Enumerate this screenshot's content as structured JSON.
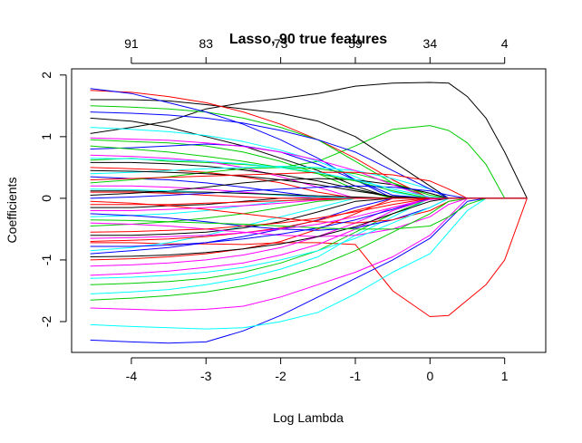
{
  "chart_data": {
    "type": "line",
    "title": "Lasso, 90 true features",
    "xlabel": "Log Lambda",
    "ylabel": "Coefficients",
    "xlim": [
      -4.8,
      1.55
    ],
    "ylim": [
      -2.5,
      2.1
    ],
    "x_ticks": [
      -4,
      -3,
      -2,
      -1,
      0,
      1
    ],
    "x_tick_labels": [
      "-4",
      "-3",
      "-2",
      "-1",
      "0",
      "1"
    ],
    "y_ticks": [
      -2,
      -1,
      0,
      1,
      2
    ],
    "y_tick_labels": [
      "-2",
      "-1",
      "0",
      "1",
      "2"
    ],
    "top_axis": {
      "positions": [
        -4,
        -3,
        -2,
        -1,
        0,
        1
      ],
      "labels": [
        "91",
        "83",
        "73",
        "59",
        "34",
        "4"
      ]
    },
    "x": [
      -4.55,
      -4.0,
      -3.5,
      -3.0,
      -2.5,
      -2.0,
      -1.5,
      -1.0,
      -0.5,
      0.0,
      0.25,
      0.5,
      0.75,
      1.0,
      1.3
    ],
    "palette": [
      "#000000",
      "#ff0000",
      "#00cd00",
      "#0000ff",
      "#00ffff",
      "#ff00ff"
    ],
    "series": [
      {
        "values": [
          1.05,
          1.15,
          1.25,
          1.45,
          1.55,
          1.62,
          1.7,
          1.82,
          1.87,
          1.88,
          1.87,
          1.65,
          1.3,
          0.75,
          0.0
        ]
      },
      {
        "values": [
          -0.72,
          -0.72,
          -0.74,
          -0.74,
          -0.75,
          -0.72,
          -0.72,
          -0.75,
          -1.5,
          -1.92,
          -1.9,
          -1.65,
          -1.4,
          -1.0,
          0.0
        ]
      },
      {
        "values": [
          0.62,
          0.65,
          0.6,
          0.58,
          0.55,
          0.5,
          0.6,
          0.85,
          1.12,
          1.18,
          1.1,
          0.9,
          0.55,
          0.0,
          0.0
        ]
      },
      {
        "values": [
          -2.3,
          -2.33,
          -2.35,
          -2.33,
          -2.15,
          -1.9,
          -1.6,
          -1.3,
          -1.0,
          -0.65,
          -0.35,
          -0.05,
          0.0,
          0.0,
          0.0
        ]
      },
      {
        "values": [
          -2.05,
          -2.08,
          -2.1,
          -2.12,
          -2.1,
          -2.0,
          -1.85,
          -1.55,
          -1.2,
          -0.9,
          -0.55,
          -0.2,
          0.0,
          0.0,
          0.0
        ]
      },
      {
        "values": [
          -1.78,
          -1.8,
          -1.82,
          -1.8,
          -1.75,
          -1.6,
          -1.4,
          -1.2,
          -0.95,
          -0.6,
          -0.3,
          0.0,
          0.0,
          0.0,
          0.0
        ]
      },
      {
        "values": [
          1.6,
          1.6,
          1.58,
          1.52,
          1.45,
          1.38,
          1.25,
          1.0,
          0.6,
          0.2,
          0.0,
          0.0,
          0.0,
          0.0,
          0.0
        ]
      },
      {
        "values": [
          1.75,
          1.72,
          1.65,
          1.55,
          1.4,
          1.2,
          0.95,
          0.65,
          0.3,
          0.0,
          0.0,
          0.0,
          0.0,
          0.0,
          0.0
        ]
      },
      {
        "values": [
          1.5,
          1.48,
          1.45,
          1.4,
          1.3,
          1.15,
          0.95,
          0.6,
          0.25,
          0.0,
          0.0,
          0.0,
          0.0,
          0.0,
          0.0
        ]
      },
      {
        "values": [
          1.78,
          1.7,
          1.55,
          1.4,
          1.2,
          0.95,
          0.65,
          0.3,
          0.0,
          0.0,
          0.0,
          0.0,
          0.0,
          0.0,
          0.0
        ]
      },
      {
        "values": [
          -1.55,
          -1.52,
          -1.48,
          -1.4,
          -1.3,
          -1.15,
          -0.95,
          -0.6,
          -0.3,
          0.0,
          0.0,
          0.0,
          0.0,
          0.0,
          0.0
        ]
      },
      {
        "values": [
          -1.25,
          -1.22,
          -1.18,
          -1.12,
          -1.05,
          -0.92,
          -0.75,
          -0.5,
          -0.2,
          0.0,
          0.0,
          0.0,
          0.0,
          0.0,
          0.0
        ]
      },
      {
        "values": [
          1.3,
          1.25,
          1.15,
          1.0,
          0.85,
          0.65,
          0.45,
          0.2,
          0.0,
          0.0,
          0.0,
          0.0,
          0.0,
          0.0,
          0.0
        ]
      },
      {
        "values": [
          -1.0,
          -0.98,
          -0.95,
          -0.9,
          -0.82,
          -0.7,
          -0.5,
          -0.25,
          0.0,
          0.0,
          0.0,
          0.0,
          0.0,
          0.0,
          0.0
        ]
      },
      {
        "values": [
          0.95,
          0.92,
          0.9,
          0.85,
          0.75,
          0.6,
          0.4,
          0.15,
          0.0,
          0.0,
          0.0,
          0.0,
          0.0,
          0.0,
          0.0
        ]
      },
      {
        "values": [
          0.8,
          0.82,
          0.85,
          0.88,
          0.85,
          0.75,
          0.55,
          0.3,
          0.05,
          0.0,
          0.0,
          0.0,
          0.0,
          0.0,
          0.0
        ]
      },
      {
        "values": [
          -0.85,
          -0.8,
          -0.72,
          -0.6,
          -0.45,
          -0.3,
          -0.15,
          0.0,
          0.0,
          0.0,
          0.0,
          0.0,
          0.0,
          0.0,
          0.0
        ]
      },
      {
        "values": [
          0.7,
          0.68,
          0.65,
          0.6,
          0.5,
          0.35,
          0.18,
          0.0,
          0.0,
          0.0,
          0.0,
          0.0,
          0.0,
          0.0,
          0.0
        ]
      },
      {
        "values": [
          -0.6,
          -0.6,
          -0.58,
          -0.55,
          -0.48,
          -0.38,
          -0.22,
          -0.05,
          0.0,
          0.0,
          0.0,
          0.0,
          0.0,
          0.0,
          0.0
        ]
      },
      {
        "values": [
          0.5,
          0.48,
          0.46,
          0.42,
          0.35,
          0.25,
          0.1,
          0.0,
          0.0,
          0.0,
          0.0,
          0.0,
          0.0,
          0.0,
          0.0
        ]
      },
      {
        "values": [
          -0.45,
          -0.42,
          -0.38,
          -0.32,
          -0.25,
          -0.15,
          -0.05,
          0.0,
          0.0,
          0.0,
          0.0,
          0.0,
          0.0,
          0.0,
          0.0
        ]
      },
      {
        "values": [
          0.35,
          0.32,
          0.3,
          0.25,
          0.18,
          0.1,
          0.02,
          0.0,
          0.0,
          0.0,
          0.0,
          0.0,
          0.0,
          0.0,
          0.0
        ]
      },
      {
        "values": [
          -0.3,
          -0.28,
          -0.25,
          -0.2,
          -0.12,
          -0.05,
          0.0,
          0.0,
          0.0,
          0.0,
          0.0,
          0.0,
          0.0,
          0.0,
          0.0
        ]
      },
      {
        "values": [
          0.2,
          0.2,
          0.18,
          0.15,
          0.1,
          0.05,
          0.0,
          0.0,
          0.0,
          0.0,
          0.0,
          0.0,
          0.0,
          0.0,
          0.0
        ]
      },
      {
        "values": [
          -0.15,
          -0.15,
          -0.12,
          -0.1,
          -0.05,
          0.0,
          0.0,
          0.0,
          0.0,
          0.0,
          0.0,
          0.0,
          0.0,
          0.0,
          0.0
        ]
      },
      {
        "values": [
          0.1,
          0.1,
          0.08,
          0.05,
          0.02,
          0.0,
          0.0,
          0.0,
          0.0,
          0.0,
          0.0,
          0.0,
          0.0,
          0.0,
          0.0
        ]
      },
      {
        "values": [
          -1.4,
          -1.38,
          -1.35,
          -1.3,
          -1.2,
          -1.05,
          -0.85,
          -0.55,
          -0.25,
          0.0,
          0.0,
          0.0,
          0.0,
          0.0,
          0.0
        ]
      },
      {
        "values": [
          -0.9,
          -0.85,
          -0.8,
          -0.72,
          -0.62,
          -0.5,
          -0.35,
          -0.15,
          0.0,
          0.0,
          0.0,
          0.0,
          0.0,
          0.0,
          0.0
        ]
      },
      {
        "values": [
          1.15,
          1.12,
          1.08,
          1.02,
          0.92,
          0.78,
          0.6,
          0.35,
          0.1,
          0.0,
          0.0,
          0.0,
          0.0,
          0.0,
          0.0
        ]
      },
      {
        "values": [
          -1.1,
          -1.08,
          -1.05,
          -1.0,
          -0.92,
          -0.8,
          -0.62,
          -0.4,
          -0.15,
          0.0,
          0.0,
          0.0,
          0.0,
          0.0,
          0.0
        ]
      },
      {
        "values": [
          0.58,
          0.58,
          0.56,
          0.52,
          0.46,
          0.38,
          0.28,
          0.15,
          0.02,
          0.0,
          0.0,
          0.0,
          0.0,
          0.0,
          0.0
        ]
      },
      {
        "values": [
          -0.7,
          -0.68,
          -0.66,
          -0.62,
          -0.56,
          -0.48,
          -0.36,
          -0.2,
          -0.05,
          0.0,
          0.0,
          0.0,
          0.0,
          0.0,
          0.0
        ]
      },
      {
        "values": [
          0.25,
          0.3,
          0.35,
          0.42,
          0.48,
          0.5,
          0.48,
          0.4,
          0.25,
          0.05,
          0.0,
          0.0,
          0.0,
          0.0,
          0.0
        ]
      },
      {
        "values": [
          -0.25,
          -0.28,
          -0.32,
          -0.38,
          -0.45,
          -0.5,
          -0.52,
          -0.48,
          -0.35,
          -0.15,
          0.0,
          0.0,
          0.0,
          0.0,
          0.0
        ]
      },
      {
        "values": [
          0.4,
          0.42,
          0.45,
          0.48,
          0.5,
          0.52,
          0.5,
          0.45,
          0.32,
          0.15,
          0.0,
          0.0,
          0.0,
          0.0,
          0.0
        ]
      },
      {
        "values": [
          -0.4,
          -0.42,
          -0.45,
          -0.5,
          -0.55,
          -0.6,
          -0.62,
          -0.6,
          -0.5,
          -0.3,
          -0.1,
          0.0,
          0.0,
          0.0,
          0.0
        ]
      },
      {
        "values": [
          0.05,
          0.08,
          0.12,
          0.18,
          0.25,
          0.3,
          0.32,
          0.3,
          0.22,
          0.08,
          0.0,
          0.0,
          0.0,
          0.0,
          0.0
        ]
      },
      {
        "values": [
          -0.05,
          -0.08,
          -0.12,
          -0.18,
          -0.25,
          -0.32,
          -0.38,
          -0.4,
          -0.35,
          -0.2,
          -0.05,
          0.0,
          0.0,
          0.0,
          0.0
        ]
      },
      {
        "values": [
          0.85,
          0.8,
          0.75,
          0.68,
          0.6,
          0.5,
          0.4,
          0.28,
          0.12,
          0.0,
          0.0,
          0.0,
          0.0,
          0.0,
          0.0
        ]
      },
      {
        "values": [
          -0.78,
          -0.78,
          -0.76,
          -0.72,
          -0.66,
          -0.58,
          -0.48,
          -0.35,
          -0.18,
          0.0,
          0.0,
          0.0,
          0.0,
          0.0,
          0.0
        ]
      },
      {
        "values": [
          0.15,
          0.14,
          0.12,
          0.1,
          0.08,
          0.05,
          0.02,
          0.0,
          0.0,
          0.0,
          0.0,
          0.0,
          0.0,
          0.0,
          0.0
        ]
      },
      {
        "values": [
          -0.2,
          -0.2,
          -0.18,
          -0.15,
          -0.12,
          -0.08,
          -0.03,
          0.0,
          0.0,
          0.0,
          0.0,
          0.0,
          0.0,
          0.0,
          0.0
        ]
      },
      {
        "values": [
          0.45,
          0.44,
          0.42,
          0.4,
          0.36,
          0.3,
          0.22,
          0.12,
          0.03,
          0.0,
          0.0,
          0.0,
          0.0,
          0.0,
          0.0
        ]
      },
      {
        "values": [
          -0.55,
          -0.54,
          -0.52,
          -0.5,
          -0.45,
          -0.4,
          -0.32,
          -0.22,
          -0.1,
          0.0,
          0.0,
          0.0,
          0.0,
          0.0,
          0.0
        ]
      },
      {
        "values": [
          -1.65,
          -1.62,
          -1.58,
          -1.52,
          -1.42,
          -1.28,
          -1.1,
          -0.85,
          -0.55,
          -0.25,
          -0.05,
          0.0,
          0.0,
          0.0,
          0.0
        ]
      },
      {
        "values": [
          1.4,
          1.38,
          1.35,
          1.3,
          1.22,
          1.1,
          0.95,
          0.75,
          0.45,
          0.15,
          0.0,
          0.0,
          0.0,
          0.0,
          0.0
        ]
      },
      {
        "values": [
          -1.3,
          -1.28,
          -1.25,
          -1.2,
          -1.12,
          -1.0,
          -0.85,
          -0.65,
          -0.4,
          -0.15,
          0.0,
          0.0,
          0.0,
          0.0,
          0.0
        ]
      },
      {
        "values": [
          0.98,
          0.96,
          0.94,
          0.9,
          0.84,
          0.75,
          0.62,
          0.45,
          0.22,
          0.0,
          0.0,
          0.0,
          0.0,
          0.0,
          0.0
        ]
      },
      {
        "values": [
          -0.95,
          -0.94,
          -0.92,
          -0.88,
          -0.82,
          -0.74,
          -0.62,
          -0.46,
          -0.25,
          -0.05,
          0.0,
          0.0,
          0.0,
          0.0,
          0.0
        ]
      },
      {
        "values": [
          0.3,
          0.32,
          0.34,
          0.36,
          0.38,
          0.4,
          0.42,
          0.42,
          0.38,
          0.28,
          0.15,
          0.0,
          0.0,
          0.0,
          0.0
        ]
      },
      {
        "values": [
          -0.35,
          -0.36,
          -0.38,
          -0.4,
          -0.42,
          -0.45,
          -0.48,
          -0.5,
          -0.5,
          -0.45,
          -0.3,
          -0.1,
          0.0,
          0.0,
          0.0
        ]
      },
      {
        "values": [
          0.0,
          0.02,
          0.05,
          0.08,
          0.12,
          0.15,
          0.18,
          0.2,
          0.18,
          0.12,
          0.05,
          0.0,
          0.0,
          0.0,
          0.0
        ]
      },
      {
        "values": [
          0.65,
          0.64,
          0.62,
          0.6,
          0.56,
          0.5,
          0.42,
          0.3,
          0.15,
          0.02,
          0.0,
          0.0,
          0.0,
          0.0,
          0.0
        ]
      },
      {
        "values": [
          -0.65,
          -0.64,
          -0.62,
          -0.6,
          -0.56,
          -0.5,
          -0.42,
          -0.3,
          -0.15,
          -0.02,
          0.0,
          0.0,
          0.0,
          0.0,
          0.0
        ]
      },
      {
        "values": [
          0.12,
          0.12,
          0.1,
          0.1,
          0.08,
          0.06,
          0.04,
          0.02,
          0.0,
          0.0,
          0.0,
          0.0,
          0.0,
          0.0,
          0.0
        ]
      },
      {
        "values": [
          -0.1,
          -0.1,
          -0.1,
          -0.08,
          -0.06,
          -0.04,
          -0.02,
          0.0,
          0.0,
          0.0,
          0.0,
          0.0,
          0.0,
          0.0,
          0.0
        ]
      }
    ]
  }
}
